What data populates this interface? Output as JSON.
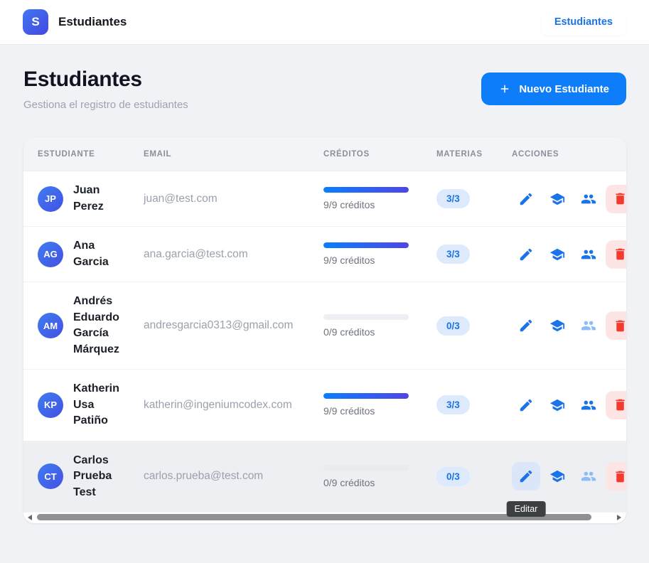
{
  "topbar": {
    "logo_text": "S",
    "app_title": "Estudiantes",
    "nav_button_label": "Estudiantes"
  },
  "page": {
    "title": "Estudiantes",
    "subtitle": "Gestiona el registro de estudiantes",
    "new_student_button_label": "Nuevo Estudiante"
  },
  "table": {
    "headers": [
      "Estudiante",
      "Email",
      "Créditos",
      "Materias",
      "Acciones"
    ],
    "rows": [
      {
        "initials": "JP",
        "name": "Juan Perez",
        "email": "juan@test.com",
        "credits_text": "9/9 créditos",
        "credits_pct": 100,
        "materias_badge": "3/3"
      },
      {
        "initials": "AG",
        "name": "Ana Garcia",
        "email": "ana.garcia@test.com",
        "credits_text": "9/9 créditos",
        "credits_pct": 100,
        "materias_badge": "3/3"
      },
      {
        "initials": "AM",
        "name": "Andrés Eduardo García Márquez",
        "email": "andresgarcia0313@gmail.com",
        "credits_text": "0/9 créditos",
        "credits_pct": 0,
        "materias_badge": "0/3"
      },
      {
        "initials": "KP",
        "name": "Katherin Usa Patiño",
        "email": "katherin@ingeniumcodex.com",
        "credits_text": "9/9 créditos",
        "credits_pct": 100,
        "materias_badge": "3/3"
      },
      {
        "initials": "CT",
        "name": "Carlos Prueba Test",
        "email": "carlos.prueba@test.com",
        "credits_text": "0/9 créditos",
        "credits_pct": 0,
        "materias_badge": "0/3"
      }
    ]
  },
  "tooltip": {
    "label": "Editar"
  },
  "colors": {
    "accent_blue": "#0d7dfa",
    "icon_blue": "#1a73e8",
    "icon_blue_disabled": "#8ebdf6",
    "danger_red": "#f23b2e",
    "danger_bg": "#fde5e5",
    "badge_bg": "#ddeafd",
    "progress_gradient_start": "#0b7dff",
    "progress_gradient_end": "#4f46e5",
    "page_bg": "#f1f2f6"
  }
}
